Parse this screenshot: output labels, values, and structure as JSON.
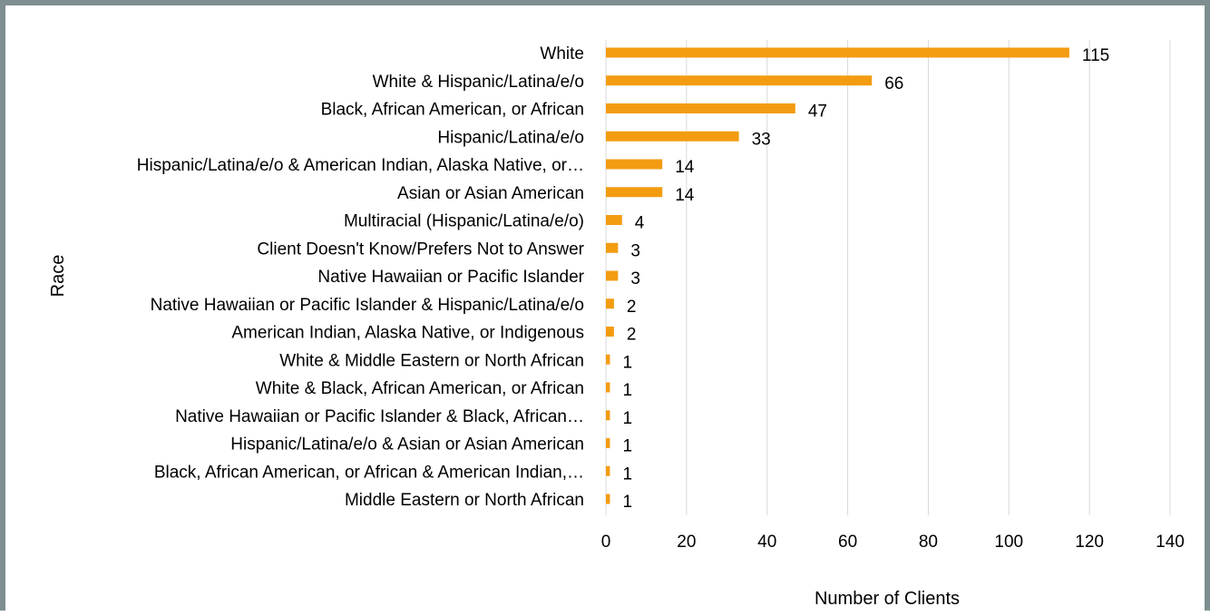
{
  "chart_data": {
    "type": "bar",
    "orientation": "horizontal",
    "title": "",
    "xlabel": "Number of Clients",
    "ylabel": "Race",
    "xlim": [
      0,
      140
    ],
    "xticks": [
      0,
      20,
      40,
      60,
      80,
      100,
      120,
      140
    ],
    "grid": true,
    "legend": "none",
    "bar_color": "#f39c12",
    "categories": [
      "White",
      "White & Hispanic/Latina/e/o",
      "Black, African American, or African",
      "Hispanic/Latina/e/o",
      "Hispanic/Latina/e/o & American Indian, Alaska Native, or…",
      "Asian or Asian American",
      "Multiracial  (Hispanic/Latina/e/o)",
      "Client Doesn't Know/Prefers Not to Answer",
      "Native Hawaiian or Pacific Islander",
      "Native Hawaiian or Pacific Islander & Hispanic/Latina/e/o",
      "American Indian, Alaska Native, or Indigenous",
      "White & Middle Eastern or North African",
      "White & Black, African American, or African",
      "Native Hawaiian or Pacific Islander & Black, African…",
      "Hispanic/Latina/e/o & Asian or Asian American",
      "Black, African American, or African & American Indian,…",
      "Middle Eastern or North African"
    ],
    "values": [
      115,
      66,
      47,
      33,
      14,
      14,
      4,
      3,
      3,
      2,
      2,
      1,
      1,
      1,
      1,
      1,
      1
    ]
  }
}
